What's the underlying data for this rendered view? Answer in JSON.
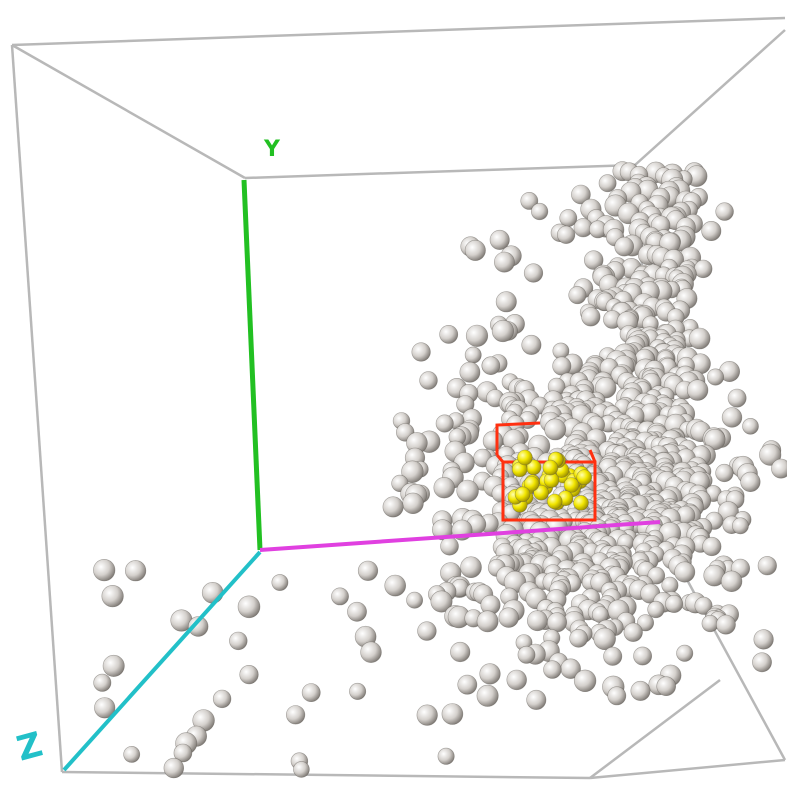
{
  "axes": {
    "y_label": "Y",
    "z_label": "Z"
  }
}
